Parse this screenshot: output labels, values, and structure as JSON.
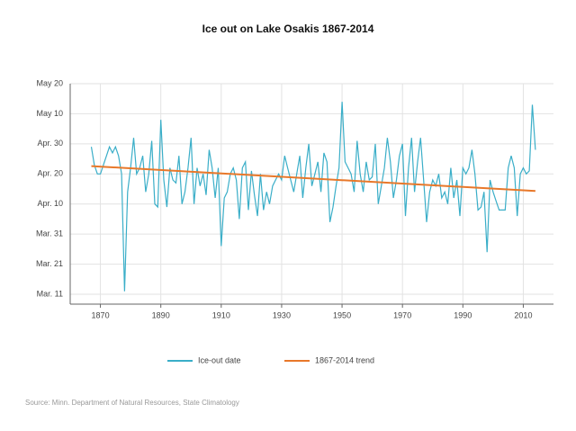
{
  "chart_data": {
    "type": "line",
    "title": "Ice out on Lake Osakis 1867-2014",
    "source": "Source: Minn. Department of Natural Resources, State Climatology",
    "xlim": [
      1860,
      2020
    ],
    "xticks": [
      1870,
      1890,
      1910,
      1930,
      1950,
      1970,
      1990,
      2010
    ],
    "ylim": [
      70,
      140
    ],
    "yticks": [
      {
        "value": 70,
        "label": "Mar. 11"
      },
      {
        "value": 80,
        "label": "Mar. 21"
      },
      {
        "value": 90,
        "label": "Mar. 31"
      },
      {
        "value": 100,
        "label": "Apr. 10"
      },
      {
        "value": 110,
        "label": "Apr. 20"
      },
      {
        "value": 120,
        "label": "Apr. 30"
      },
      {
        "value": 130,
        "label": "May 10"
      },
      {
        "value": 140,
        "label": "May 20"
      }
    ],
    "grid": true,
    "series": [
      {
        "name": "Ice-out date",
        "color": "#3aaec8",
        "x": [
          1867,
          1868,
          1869,
          1870,
          1871,
          1872,
          1873,
          1874,
          1875,
          1876,
          1877,
          1878,
          1879,
          1880,
          1881,
          1882,
          1883,
          1884,
          1885,
          1886,
          1887,
          1888,
          1889,
          1890,
          1891,
          1892,
          1893,
          1894,
          1895,
          1896,
          1897,
          1898,
          1899,
          1900,
          1901,
          1902,
          1903,
          1904,
          1905,
          1906,
          1907,
          1908,
          1909,
          1910,
          1911,
          1912,
          1913,
          1914,
          1915,
          1916,
          1917,
          1918,
          1919,
          1920,
          1921,
          1922,
          1923,
          1924,
          1925,
          1926,
          1927,
          1928,
          1929,
          1930,
          1931,
          1932,
          1933,
          1934,
          1935,
          1936,
          1937,
          1938,
          1939,
          1940,
          1941,
          1942,
          1943,
          1944,
          1945,
          1946,
          1947,
          1948,
          1949,
          1950,
          1951,
          1952,
          1953,
          1954,
          1955,
          1956,
          1957,
          1958,
          1959,
          1960,
          1961,
          1962,
          1963,
          1964,
          1965,
          1966,
          1967,
          1968,
          1969,
          1970,
          1971,
          1972,
          1973,
          1974,
          1975,
          1976,
          1977,
          1978,
          1979,
          1980,
          1981,
          1982,
          1983,
          1984,
          1985,
          1986,
          1987,
          1988,
          1989,
          1990,
          1991,
          1992,
          1993,
          1994,
          1995,
          1996,
          1997,
          1998,
          1999,
          2000,
          2001,
          2002,
          2003,
          2004,
          2005,
          2006,
          2007,
          2008,
          2009,
          2010,
          2011,
          2012,
          2013,
          2014
        ],
        "values": [
          119,
          113,
          110,
          110,
          113,
          116,
          119,
          117,
          119,
          116,
          110,
          71,
          104,
          112,
          122,
          110,
          112,
          116,
          104,
          110,
          121,
          100,
          99,
          128,
          108,
          99,
          112,
          108,
          107,
          116,
          100,
          104,
          112,
          122,
          100,
          112,
          106,
          110,
          103,
          118,
          112,
          102,
          112,
          86,
          102,
          104,
          110,
          112,
          108,
          95,
          112,
          114,
          98,
          111,
          103,
          96,
          110,
          98,
          104,
          100,
          106,
          108,
          110,
          108,
          116,
          112,
          108,
          104,
          110,
          116,
          102,
          112,
          120,
          106,
          110,
          114,
          104,
          117,
          114,
          94,
          99,
          106,
          112,
          134,
          114,
          112,
          110,
          104,
          121,
          110,
          104,
          114,
          108,
          109,
          120,
          100,
          106,
          112,
          122,
          114,
          102,
          108,
          116,
          120,
          96,
          112,
          122,
          104,
          114,
          122,
          108,
          94,
          104,
          108,
          106,
          110,
          102,
          104,
          100,
          112,
          102,
          108,
          96,
          112,
          110,
          112,
          118,
          110,
          98,
          99,
          104,
          84,
          108,
          104,
          101,
          98,
          98,
          98,
          112,
          116,
          112,
          96,
          110,
          112,
          110,
          111,
          133,
          118
        ]
      },
      {
        "name": "1867-2014 trend",
        "color": "#e8782a",
        "x": [
          1867,
          2014
        ],
        "values": [
          112.6,
          104.3
        ]
      }
    ]
  }
}
